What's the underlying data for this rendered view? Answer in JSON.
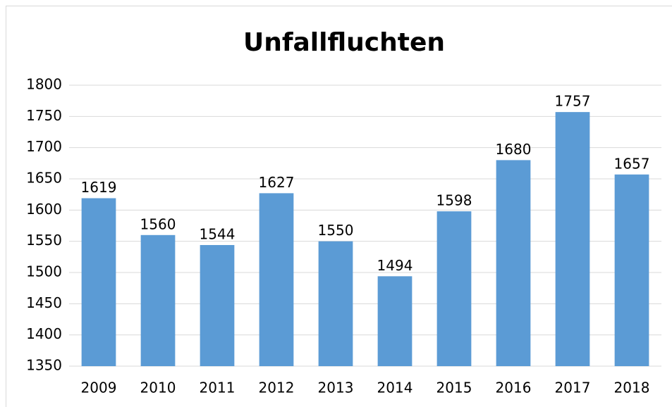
{
  "chart_data": {
    "type": "bar",
    "title": "Unfallfluchten",
    "categories": [
      "2009",
      "2010",
      "2011",
      "2012",
      "2013",
      "2014",
      "2015",
      "2016",
      "2017",
      "2018"
    ],
    "values": [
      1619,
      1560,
      1544,
      1627,
      1550,
      1494,
      1598,
      1680,
      1757,
      1657
    ],
    "color": "#5b9bd5",
    "ylim": [
      1350,
      1800
    ],
    "yticks": [
      1350,
      1400,
      1450,
      1500,
      1550,
      1600,
      1650,
      1700,
      1750,
      1800
    ],
    "grid": true
  }
}
